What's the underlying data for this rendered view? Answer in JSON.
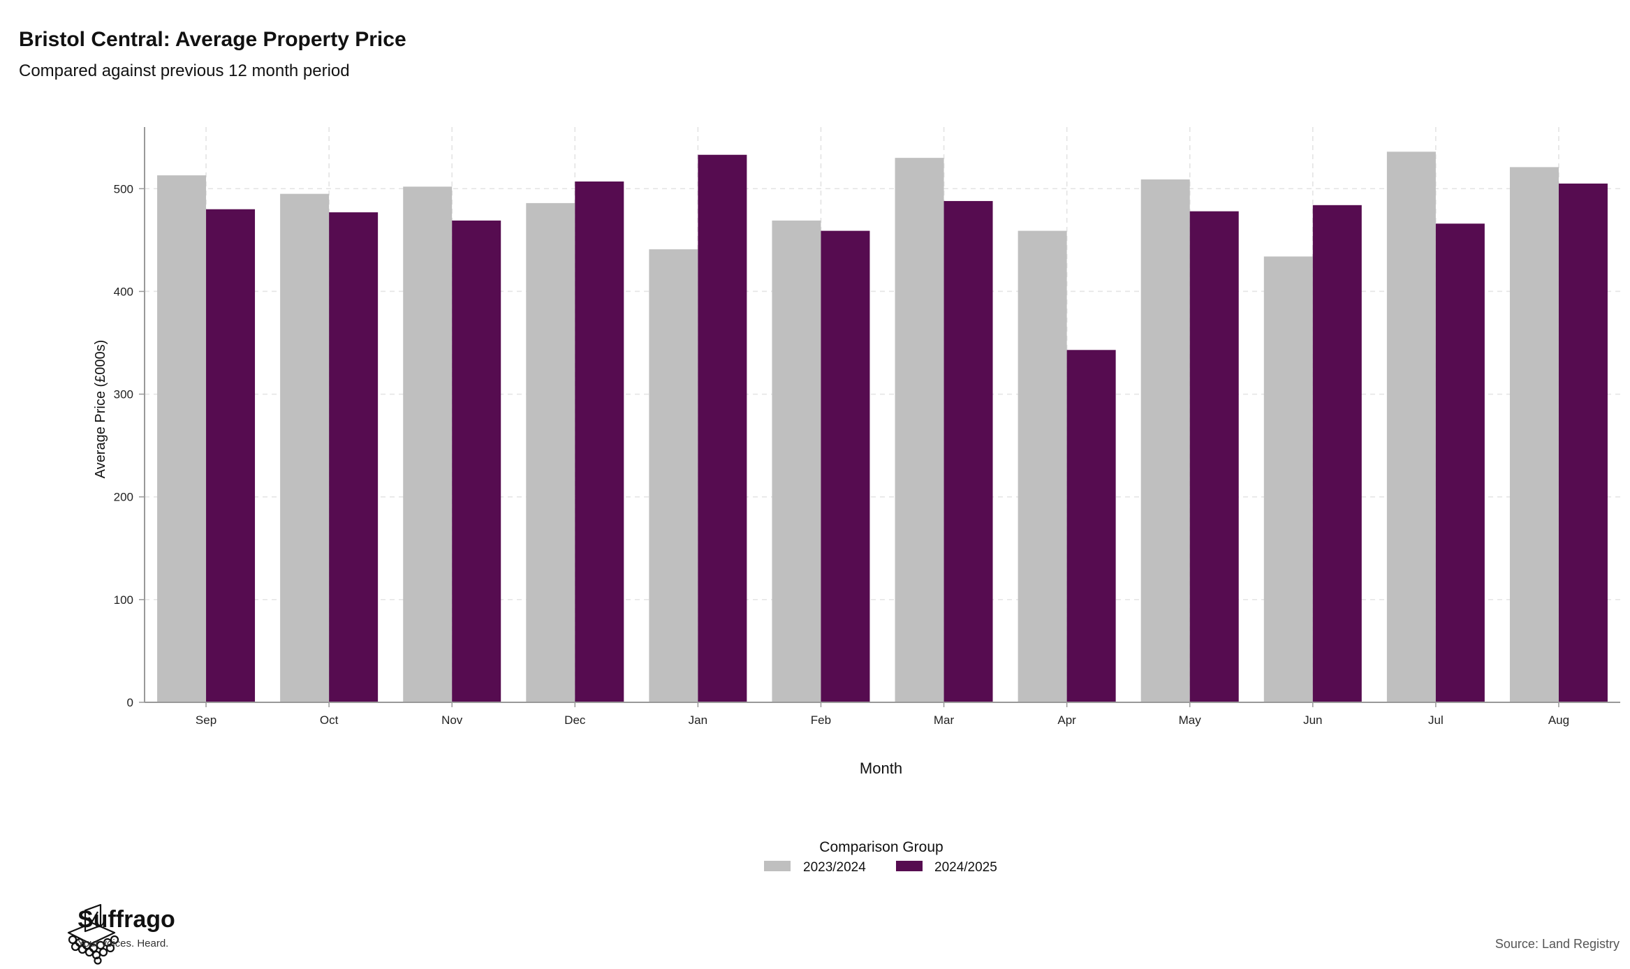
{
  "chart_data": {
    "type": "bar",
    "title": "Bristol Central: Average Property Price",
    "subtitle": "Compared against previous 12 month period",
    "xlabel": "Month",
    "ylabel": "Average Price (£000s)",
    "categories": [
      "Sep",
      "Oct",
      "Nov",
      "Dec",
      "Jan",
      "Feb",
      "Mar",
      "Apr",
      "May",
      "Jun",
      "Jul",
      "Aug"
    ],
    "series": [
      {
        "name": "2023/2024",
        "color": "#bfbfbf",
        "values": [
          513,
          495,
          502,
          486,
          441,
          469,
          530,
          459,
          509,
          434,
          536,
          521
        ]
      },
      {
        "name": "2024/2025",
        "color": "#560c50",
        "values": [
          480,
          477,
          469,
          507,
          533,
          459,
          488,
          343,
          478,
          484,
          466,
          505
        ]
      }
    ],
    "ylim": [
      0,
      560
    ],
    "yticks": [
      0,
      100,
      200,
      300,
      400,
      500
    ],
    "grid": true,
    "legend": {
      "title": "Comparison Group",
      "position": "bottom-center"
    }
  },
  "branding": {
    "name": "Suffrago",
    "tagline": "Your voices. Heard.",
    "source": "Source: Land Registry"
  }
}
